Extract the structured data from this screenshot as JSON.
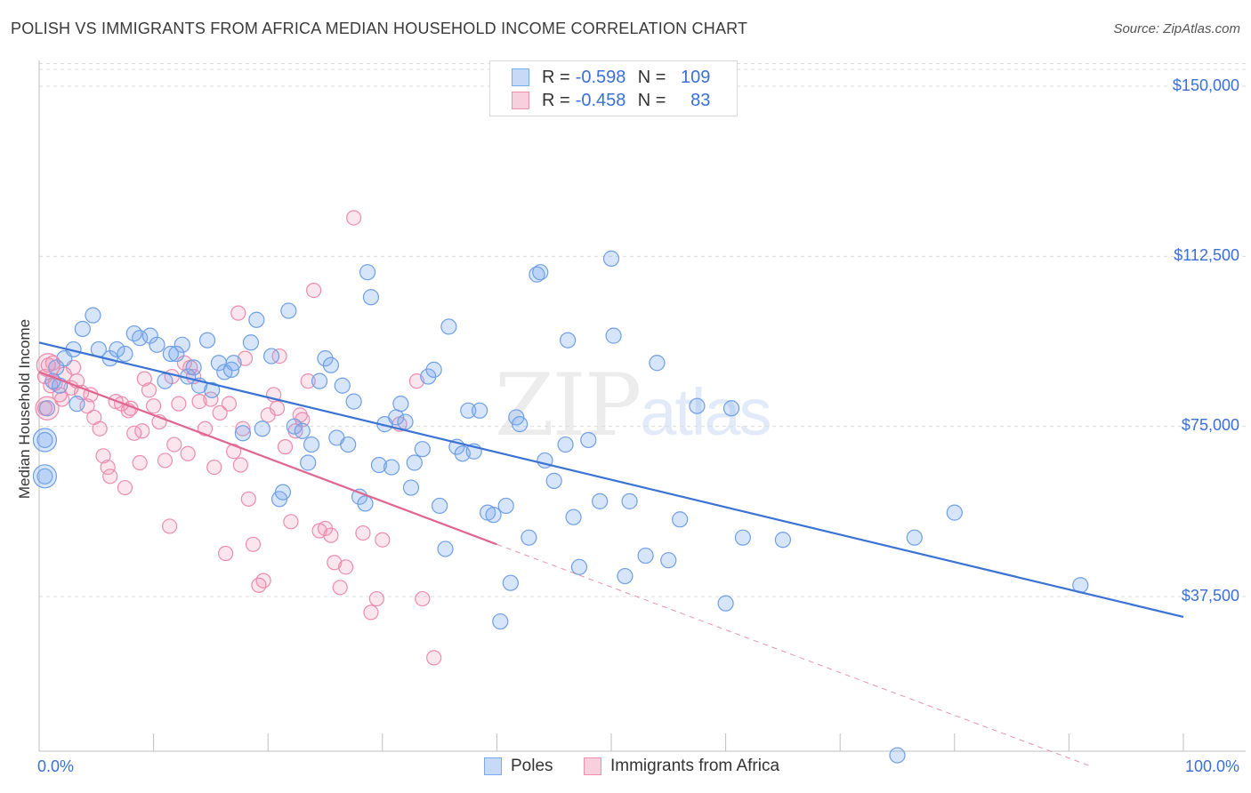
{
  "title": "POLISH VS IMMIGRANTS FROM AFRICA MEDIAN HOUSEHOLD INCOME CORRELATION CHART",
  "source": "Source: ZipAtlas.com",
  "watermark": {
    "part1": "ZIP",
    "part2": "atlas"
  },
  "legend_top": {
    "rows": [
      {
        "r_label": "R =",
        "r_value": "-0.598",
        "n_label": "N =",
        "n_value": "109",
        "color": "#7aaaf0",
        "fill": "#c6daf7"
      },
      {
        "r_label": "R =",
        "r_value": "-0.458",
        "n_label": "N =",
        "n_value": "83",
        "color": "#ef8fb0",
        "fill": "#f8cfdd"
      }
    ]
  },
  "legend_bottom": {
    "series1": "Poles",
    "series2": "Immigrants from Africa"
  },
  "x_ticks": {
    "left": "0.0%",
    "right": "100.0%"
  },
  "y_ticks": [
    "$150,000",
    "$112,500",
    "$75,000",
    "$37,500"
  ],
  "colors": {
    "blue": "#3a73d4",
    "blue_fill": "rgba(122,170,240,0.30)",
    "blue_stroke": "#6f9fe6",
    "pink": "#e0668f",
    "pink_fill": "rgba(239,143,176,0.22)",
    "pink_stroke": "#ec8cab"
  },
  "chart_data": {
    "type": "scatter",
    "title": "POLISH VS IMMIGRANTS FROM AFRICA MEDIAN HOUSEHOLD INCOME CORRELATION CHART",
    "xlabel": "",
    "ylabel": "Median Household Income",
    "xlim": [
      0,
      100
    ],
    "ylim": [
      0,
      155000
    ],
    "y_ticks": [
      37500,
      75000,
      112500,
      150000
    ],
    "grid": true,
    "legend": "top-center",
    "series": [
      {
        "name": "Poles",
        "r": -0.598,
        "n": 109,
        "trend": {
          "x": [
            0,
            100
          ],
          "y": [
            93500,
            33000
          ]
        },
        "points": [
          [
            0.5,
            64000
          ],
          [
            0.5,
            72000
          ],
          [
            0.7,
            79000
          ],
          [
            1.5,
            88000
          ],
          [
            1.8,
            84000
          ],
          [
            2.2,
            90000
          ],
          [
            3.0,
            92000
          ],
          [
            3.8,
            96500
          ],
          [
            4.7,
            99500
          ],
          [
            5.2,
            92000
          ],
          [
            6.2,
            90000
          ],
          [
            6.8,
            92000
          ],
          [
            7.5,
            91000
          ],
          [
            8.3,
            95500
          ],
          [
            8.8,
            94500
          ],
          [
            9.7,
            95000
          ],
          [
            10.3,
            93000
          ],
          [
            11.0,
            85000
          ],
          [
            11.5,
            91000
          ],
          [
            12.5,
            93000
          ],
          [
            13.0,
            86000
          ],
          [
            13.5,
            88000
          ],
          [
            14.0,
            84000
          ],
          [
            14.7,
            94000
          ],
          [
            15.1,
            83000
          ],
          [
            15.7,
            89000
          ],
          [
            16.2,
            87000
          ],
          [
            16.8,
            87500
          ],
          [
            17.0,
            89000
          ],
          [
            17.8,
            73500
          ],
          [
            18.5,
            93500
          ],
          [
            19.0,
            98500
          ],
          [
            19.5,
            74500
          ],
          [
            20.3,
            90500
          ],
          [
            21.0,
            59000
          ],
          [
            21.3,
            60500
          ],
          [
            21.8,
            100500
          ],
          [
            22.3,
            75000
          ],
          [
            23.0,
            74000
          ],
          [
            23.5,
            67000
          ],
          [
            23.8,
            71000
          ],
          [
            24.5,
            85000
          ],
          [
            25.0,
            90000
          ],
          [
            25.5,
            88500
          ],
          [
            26.0,
            72500
          ],
          [
            26.5,
            84000
          ],
          [
            27.5,
            80500
          ],
          [
            28.0,
            59500
          ],
          [
            28.5,
            58000
          ],
          [
            28.7,
            109000
          ],
          [
            29.0,
            103500
          ],
          [
            29.7,
            66500
          ],
          [
            30.2,
            75500
          ],
          [
            30.8,
            66000
          ],
          [
            31.2,
            77000
          ],
          [
            31.6,
            80000
          ],
          [
            32.0,
            76000
          ],
          [
            32.5,
            61500
          ],
          [
            32.8,
            67000
          ],
          [
            33.5,
            70000
          ],
          [
            34.0,
            86000
          ],
          [
            34.5,
            87500
          ],
          [
            35.0,
            57500
          ],
          [
            35.5,
            48000
          ],
          [
            35.8,
            97000
          ],
          [
            36.5,
            70500
          ],
          [
            37.0,
            69000
          ],
          [
            37.5,
            78500
          ],
          [
            38.0,
            69500
          ],
          [
            38.5,
            78500
          ],
          [
            39.2,
            56000
          ],
          [
            39.7,
            55500
          ],
          [
            40.3,
            32000
          ],
          [
            40.8,
            57500
          ],
          [
            41.2,
            40500
          ],
          [
            41.7,
            77000
          ],
          [
            42.0,
            75500
          ],
          [
            42.8,
            50500
          ],
          [
            43.5,
            108500
          ],
          [
            43.8,
            109000
          ],
          [
            44.2,
            67500
          ],
          [
            45.0,
            63000
          ],
          [
            46.0,
            71000
          ],
          [
            46.2,
            94000
          ],
          [
            46.7,
            55000
          ],
          [
            47.2,
            44000
          ],
          [
            49.0,
            58500
          ],
          [
            50.0,
            112000
          ],
          [
            50.2,
            95000
          ],
          [
            51.2,
            42000
          ],
          [
            51.6,
            58500
          ],
          [
            53.0,
            46500
          ],
          [
            54.0,
            89000
          ],
          [
            55.0,
            45500
          ],
          [
            56.0,
            54500
          ],
          [
            57.5,
            79500
          ],
          [
            60.0,
            36000
          ],
          [
            61.5,
            50500
          ],
          [
            75.0,
            2500
          ],
          [
            76.5,
            50500
          ],
          [
            80.0,
            56000
          ],
          [
            91.0,
            40000
          ],
          [
            1.2,
            85000
          ],
          [
            3.3,
            80000
          ],
          [
            12.0,
            91000
          ],
          [
            27.0,
            71000
          ],
          [
            48.0,
            72000
          ],
          [
            60.5,
            79000
          ],
          [
            65.0,
            50000
          ]
        ]
      },
      {
        "name": "Immigrants from Africa",
        "r": -0.458,
        "n": 83,
        "trend": {
          "x": [
            0,
            40
          ],
          "y": [
            87000,
            49000
          ]
        },
        "trend_extended": {
          "x": [
            40,
            92
          ],
          "y": [
            49000,
            0
          ]
        },
        "points": [
          [
            0.5,
            79000
          ],
          [
            0.5,
            86000
          ],
          [
            0.8,
            88500
          ],
          [
            1.2,
            89000
          ],
          [
            1.4,
            84500
          ],
          [
            1.8,
            82000
          ],
          [
            2.2,
            86500
          ],
          [
            2.8,
            83500
          ],
          [
            3.3,
            85000
          ],
          [
            3.7,
            82500
          ],
          [
            4.2,
            79500
          ],
          [
            4.8,
            77000
          ],
          [
            5.3,
            74500
          ],
          [
            5.6,
            68500
          ],
          [
            6.0,
            66000
          ],
          [
            6.2,
            64000
          ],
          [
            6.7,
            80500
          ],
          [
            7.2,
            80000
          ],
          [
            7.5,
            61500
          ],
          [
            7.8,
            78500
          ],
          [
            8.3,
            73500
          ],
          [
            8.8,
            67000
          ],
          [
            9.2,
            85500
          ],
          [
            9.6,
            83000
          ],
          [
            10.0,
            79500
          ],
          [
            10.5,
            76000
          ],
          [
            11.0,
            67500
          ],
          [
            11.4,
            53000
          ],
          [
            11.8,
            71000
          ],
          [
            12.2,
            80000
          ],
          [
            12.7,
            89000
          ],
          [
            13.2,
            88000
          ],
          [
            13.5,
            86000
          ],
          [
            14.0,
            80500
          ],
          [
            14.5,
            74500
          ],
          [
            15.0,
            81000
          ],
          [
            15.3,
            66000
          ],
          [
            15.8,
            78000
          ],
          [
            16.3,
            47000
          ],
          [
            16.6,
            80000
          ],
          [
            17.0,
            69500
          ],
          [
            17.4,
            100000
          ],
          [
            17.8,
            74500
          ],
          [
            18.3,
            59000
          ],
          [
            18.7,
            49000
          ],
          [
            19.2,
            40000
          ],
          [
            19.6,
            41000
          ],
          [
            20.0,
            77500
          ],
          [
            20.5,
            82000
          ],
          [
            21.0,
            90500
          ],
          [
            21.5,
            70500
          ],
          [
            22.0,
            54000
          ],
          [
            22.4,
            74000
          ],
          [
            23.0,
            76500
          ],
          [
            23.5,
            85000
          ],
          [
            24.0,
            105000
          ],
          [
            24.5,
            52000
          ],
          [
            25.0,
            52500
          ],
          [
            25.5,
            51000
          ],
          [
            25.8,
            45000
          ],
          [
            26.3,
            39500
          ],
          [
            26.8,
            44000
          ],
          [
            27.5,
            121000
          ],
          [
            28.3,
            51500
          ],
          [
            29.0,
            34000
          ],
          [
            29.5,
            37000
          ],
          [
            30.0,
            50000
          ],
          [
            31.5,
            75500
          ],
          [
            33.0,
            85000
          ],
          [
            33.5,
            37000
          ],
          [
            34.5,
            24000
          ],
          [
            3.0,
            88000
          ],
          [
            2.0,
            81000
          ],
          [
            9.0,
            74000
          ],
          [
            13.0,
            69000
          ],
          [
            17.6,
            66500
          ],
          [
            20.8,
            79000
          ],
          [
            22.8,
            77500
          ],
          [
            8.0,
            79000
          ],
          [
            18.0,
            90000
          ],
          [
            1.0,
            84000
          ],
          [
            4.5,
            82000
          ],
          [
            11.6,
            86000
          ]
        ]
      }
    ]
  }
}
